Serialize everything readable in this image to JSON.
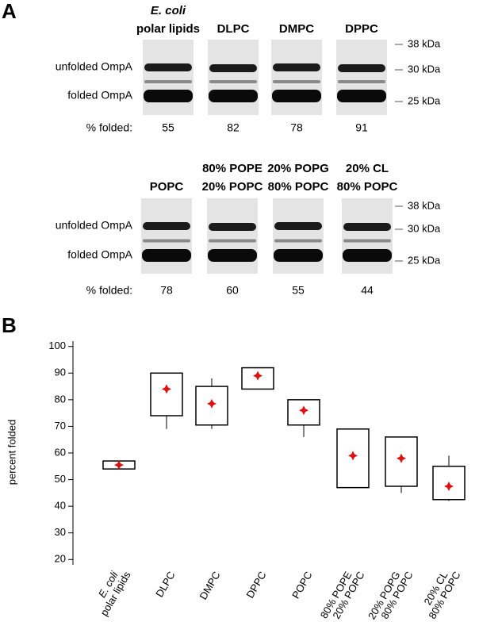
{
  "panel_a": {
    "label": "A",
    "rows": [
      {
        "lanes": [
          [
            "E. coli",
            "polar lipids"
          ],
          [
            "DLPC"
          ],
          [
            "DMPC"
          ],
          [
            "DPPC"
          ]
        ],
        "band_labels": [
          "unfolded OmpA",
          "folded OmpA"
        ],
        "markers": [
          "38 kDa",
          "30 kDa",
          "25 kDa"
        ],
        "folded_label": "% folded:",
        "folded": [
          55,
          82,
          78,
          91
        ]
      },
      {
        "lanes": [
          [
            "POPC"
          ],
          [
            "80% POPE",
            "20% POPC"
          ],
          [
            "20% POPG",
            "80% POPC"
          ],
          [
            "20% CL",
            "80% POPC"
          ]
        ],
        "band_labels": [
          "unfolded OmpA",
          "folded OmpA"
        ],
        "markers": [
          "38 kDa",
          "30 kDa",
          "25 kDa"
        ],
        "folded_label": "% folded:",
        "folded": [
          78,
          60,
          55,
          44
        ]
      }
    ]
  },
  "chart_data": {
    "type": "box",
    "panel_label": "B",
    "y_label": "percent folded",
    "categories": [
      [
        "E. coli",
        "polar lipids"
      ],
      [
        "DLPC"
      ],
      [
        "DMPC"
      ],
      [
        "DPPC"
      ],
      [
        "POPC"
      ],
      [
        "80% POPE",
        "20% POPC"
      ],
      [
        "20% POPG",
        "80% POPC"
      ],
      [
        "20% CL",
        "80% POPC"
      ]
    ],
    "whislo": [
      54,
      69,
      69,
      84,
      66,
      47,
      45,
      42
    ],
    "q1": [
      54,
      74,
      70.5,
      84,
      70.5,
      47,
      47.5,
      42.5
    ],
    "q3": [
      57,
      90,
      85,
      92,
      80,
      69,
      66,
      55
    ],
    "whishi": [
      57,
      90,
      88,
      92,
      80,
      69,
      66,
      59
    ],
    "mean": [
      55.5,
      84,
      78.5,
      89,
      76,
      59,
      58,
      47.5
    ],
    "box_color": "#000000",
    "mean_color": "#e01010",
    "ylim": [
      18,
      102
    ],
    "yticks": [
      20,
      30,
      40,
      50,
      60,
      70,
      80,
      90,
      100
    ]
  }
}
